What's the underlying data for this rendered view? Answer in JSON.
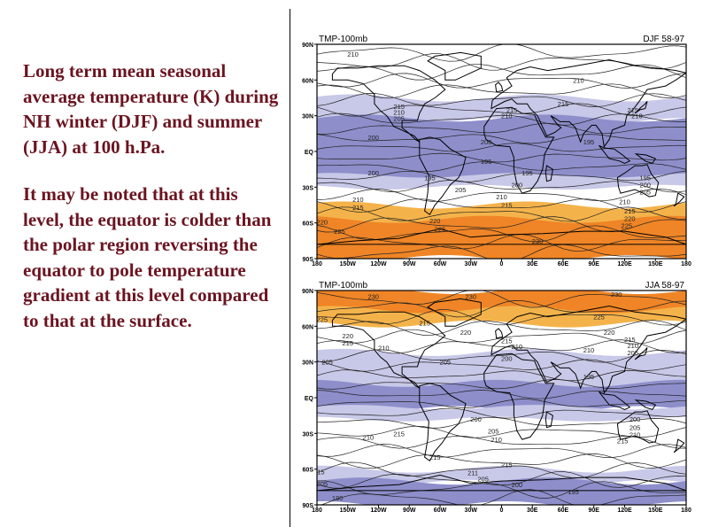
{
  "text": {
    "para1": "Long term mean seasonal average temperature (K) during NH winter (DJF)  and summer (JJA) at 100 h.Pa.",
    "para2": "It may be noted that at this level, the equator is colder than the polar region reversing the equator to pole temperature gradient at this level compared to that at the surface."
  },
  "colors": {
    "text": "#6b1420",
    "band_dark_blue": "#8e8ecb",
    "band_light_blue": "#c8c8e8",
    "band_light_orange": "#f4b34a",
    "band_dark_orange": "#ef8526"
  },
  "maps": [
    {
      "title": "TMP-100mb",
      "season": "DJF  58-97",
      "y_ticks": [
        "90N",
        "60N",
        "30N",
        "EQ",
        "30S",
        "60S",
        "90S"
      ],
      "x_ticks": [
        "180",
        "150W",
        "120W",
        "90W",
        "60W",
        "30W",
        "0",
        "30E",
        "60E",
        "90E",
        "120E",
        "150E",
        "180"
      ],
      "labels": [
        {
          "text": "210",
          "lon": -145,
          "lat": 82
        },
        {
          "text": "210",
          "lon": 75,
          "lat": 60
        },
        {
          "text": "215",
          "lon": -100,
          "lat": 38
        },
        {
          "text": "210",
          "lon": -100,
          "lat": 33
        },
        {
          "text": "205",
          "lon": -100,
          "lat": 28
        },
        {
          "text": "215",
          "lon": 10,
          "lat": 35
        },
        {
          "text": "210",
          "lon": 5,
          "lat": 30
        },
        {
          "text": "215",
          "lon": 60,
          "lat": 40
        },
        {
          "text": "215",
          "lon": 128,
          "lat": 35
        },
        {
          "text": "210",
          "lon": 132,
          "lat": 30
        },
        {
          "text": "200",
          "lon": -125,
          "lat": 12
        },
        {
          "text": "200",
          "lon": -15,
          "lat": 8
        },
        {
          "text": "195",
          "lon": 85,
          "lat": 8
        },
        {
          "text": "195",
          "lon": -15,
          "lat": -8
        },
        {
          "text": "200",
          "lon": -125,
          "lat": -18
        },
        {
          "text": "195",
          "lon": -70,
          "lat": -22
        },
        {
          "text": "195",
          "lon": 25,
          "lat": -18
        },
        {
          "text": "200",
          "lon": 15,
          "lat": -28
        },
        {
          "text": "205",
          "lon": -40,
          "lat": -32
        },
        {
          "text": "210",
          "lon": 0,
          "lat": -38
        },
        {
          "text": "215",
          "lon": 5,
          "lat": -45
        },
        {
          "text": "195",
          "lon": 140,
          "lat": -22
        },
        {
          "text": "200",
          "lon": 140,
          "lat": -28
        },
        {
          "text": "205",
          "lon": 140,
          "lat": -34
        },
        {
          "text": "210",
          "lon": 120,
          "lat": -42
        },
        {
          "text": "215",
          "lon": 125,
          "lat": -50
        },
        {
          "text": "220",
          "lon": 125,
          "lat": -56
        },
        {
          "text": "225",
          "lon": 122,
          "lat": -62
        },
        {
          "text": "210",
          "lon": -140,
          "lat": -40
        },
        {
          "text": "215",
          "lon": -140,
          "lat": -47
        },
        {
          "text": "220",
          "lon": -175,
          "lat": -59
        },
        {
          "text": "225",
          "lon": -158,
          "lat": -67
        },
        {
          "text": "220",
          "lon": -65,
          "lat": -58
        },
        {
          "text": "225",
          "lon": -60,
          "lat": -65
        },
        {
          "text": "230",
          "lon": 35,
          "lat": -75
        }
      ]
    },
    {
      "title": "TMP-100mb",
      "season": "JJA  58-97",
      "y_ticks": [
        "90N",
        "60N",
        "30N",
        "EQ",
        "30S",
        "60S",
        "90S"
      ],
      "x_ticks": [
        "180",
        "150W",
        "120W",
        "90W",
        "60W",
        "30W",
        "0",
        "30E",
        "60E",
        "90E",
        "120E",
        "150E",
        "180"
      ],
      "labels": [
        {
          "text": "230",
          "lon": -125,
          "lat": 85
        },
        {
          "text": "230",
          "lon": -30,
          "lat": 85
        },
        {
          "text": "230",
          "lon": 112,
          "lat": 87
        },
        {
          "text": "225",
          "lon": -175,
          "lat": 66
        },
        {
          "text": "225",
          "lon": 95,
          "lat": 68
        },
        {
          "text": "215",
          "lon": -75,
          "lat": 63
        },
        {
          "text": "220",
          "lon": -150,
          "lat": 52
        },
        {
          "text": "215",
          "lon": -150,
          "lat": 46
        },
        {
          "text": "210",
          "lon": -115,
          "lat": 42
        },
        {
          "text": "220",
          "lon": -35,
          "lat": 55
        },
        {
          "text": "215",
          "lon": 5,
          "lat": 48
        },
        {
          "text": "210",
          "lon": 15,
          "lat": 43
        },
        {
          "text": "220",
          "lon": 105,
          "lat": 55
        },
        {
          "text": "215",
          "lon": 125,
          "lat": 49
        },
        {
          "text": "210",
          "lon": 128,
          "lat": 44
        },
        {
          "text": "205",
          "lon": 128,
          "lat": 38
        },
        {
          "text": "210",
          "lon": 85,
          "lat": 40
        },
        {
          "text": "205",
          "lon": -170,
          "lat": 30
        },
        {
          "text": "205",
          "lon": -55,
          "lat": 30
        },
        {
          "text": "200",
          "lon": 5,
          "lat": 33
        },
        {
          "text": "195",
          "lon": 85,
          "lat": 18
        },
        {
          "text": "200",
          "lon": -25,
          "lat": -18
        },
        {
          "text": "205",
          "lon": -8,
          "lat": -28
        },
        {
          "text": "210",
          "lon": -5,
          "lat": -35
        },
        {
          "text": "200",
          "lon": 130,
          "lat": -18
        },
        {
          "text": "205",
          "lon": 130,
          "lat": -25
        },
        {
          "text": "210",
          "lon": 130,
          "lat": -31
        },
        {
          "text": "215",
          "lon": 118,
          "lat": -36
        },
        {
          "text": "210",
          "lon": -130,
          "lat": -33
        },
        {
          "text": "215",
          "lon": -100,
          "lat": -30
        },
        {
          "text": "215",
          "lon": -65,
          "lat": -50
        },
        {
          "text": "215",
          "lon": 5,
          "lat": -56
        },
        {
          "text": "211",
          "lon": -28,
          "lat": -63
        },
        {
          "text": "205",
          "lon": -18,
          "lat": -68
        },
        {
          "text": "215",
          "lon": -178,
          "lat": -62
        },
        {
          "text": "205",
          "lon": -175,
          "lat": -72
        },
        {
          "text": "200",
          "lon": 15,
          "lat": -73
        },
        {
          "text": "195",
          "lon": 70,
          "lat": -79
        },
        {
          "text": "190",
          "lon": -160,
          "lat": -84
        }
      ]
    }
  ]
}
